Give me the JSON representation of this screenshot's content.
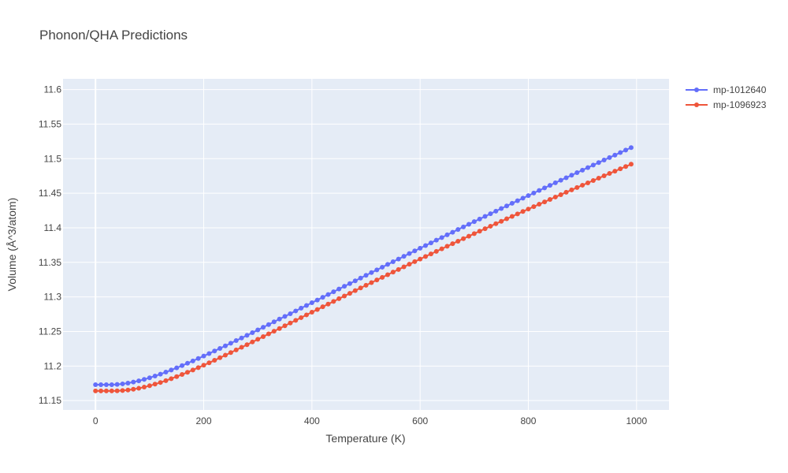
{
  "chart_data": {
    "type": "line",
    "title": "Phonon/QHA Predictions",
    "xlabel": "Temperature (K)",
    "ylabel": "Volume (Å^3/atom)",
    "xlim": [
      -60,
      1060
    ],
    "ylim": [
      11.1365,
      11.6155
    ],
    "xticks": [
      0,
      200,
      400,
      600,
      800,
      1000
    ],
    "xtick_labels": [
      "0",
      "200",
      "400",
      "600",
      "800",
      "1000"
    ],
    "yticks": [
      11.15,
      11.2,
      11.25,
      11.3,
      11.35,
      11.4,
      11.45,
      11.5,
      11.55,
      11.6
    ],
    "ytick_labels": [
      "11.15",
      "11.2",
      "11.25",
      "11.3",
      "11.35",
      "11.4",
      "11.45",
      "11.5",
      "11.55",
      "11.6"
    ],
    "grid": true,
    "legend_position": "top-right",
    "x": [
      0,
      10,
      20,
      30,
      40,
      50,
      60,
      70,
      80,
      90,
      100,
      110,
      120,
      130,
      140,
      150,
      160,
      170,
      180,
      190,
      200,
      210,
      220,
      230,
      240,
      250,
      260,
      270,
      280,
      290,
      300,
      310,
      320,
      330,
      340,
      350,
      360,
      370,
      380,
      390,
      400,
      410,
      420,
      430,
      440,
      450,
      460,
      470,
      480,
      490,
      500,
      510,
      520,
      530,
      540,
      550,
      560,
      570,
      580,
      590,
      600,
      610,
      620,
      630,
      640,
      650,
      660,
      670,
      680,
      690,
      700,
      710,
      720,
      730,
      740,
      750,
      760,
      770,
      780,
      790,
      800,
      810,
      820,
      830,
      840,
      850,
      860,
      870,
      880,
      890,
      900,
      910,
      920,
      930,
      940,
      950,
      960,
      970,
      980,
      990
    ],
    "series": [
      {
        "name": "mp-1012640",
        "color": "#636efa",
        "values": [
          11.173,
          11.173,
          11.173,
          11.173,
          11.1734,
          11.1742,
          11.1753,
          11.1768,
          11.1786,
          11.1807,
          11.183,
          11.1856,
          11.1883,
          11.1912,
          11.1942,
          11.1974,
          11.2006,
          11.204,
          11.2074,
          11.2109,
          11.2145,
          11.2181,
          11.2218,
          11.2255,
          11.2292,
          11.233,
          11.2368,
          11.2406,
          11.2444,
          11.2483,
          11.2522,
          11.2561,
          11.26,
          11.2639,
          11.2679,
          11.2718,
          11.2757,
          11.2797,
          11.2837,
          11.2876,
          11.2916,
          11.2955,
          11.2995,
          11.3035,
          11.3074,
          11.3114,
          11.3154,
          11.3193,
          11.3233,
          11.3273,
          11.3312,
          11.3352,
          11.3391,
          11.343,
          11.347,
          11.3509,
          11.3548,
          11.3587,
          11.3627,
          11.3666,
          11.3704,
          11.3743,
          11.3782,
          11.3821,
          11.3859,
          11.3898,
          11.3936,
          11.3975,
          11.4013,
          11.4051,
          11.4089,
          11.4127,
          11.4165,
          11.4203,
          11.4241,
          11.4279,
          11.4316,
          11.4354,
          11.4391,
          11.4428,
          11.4466,
          11.4503,
          11.454,
          11.4577,
          11.4614,
          11.4651,
          11.4688,
          11.4724,
          11.4761,
          11.4798,
          11.4834,
          11.4871,
          11.4907,
          11.4943,
          11.498,
          11.5016,
          11.5052,
          11.5088,
          11.5124,
          11.516
        ]
      },
      {
        "name": "mp-1096923",
        "color": "#ef553b",
        "values": [
          11.164,
          11.164,
          11.164,
          11.164,
          11.1641,
          11.1646,
          11.1653,
          11.1664,
          11.1678,
          11.1695,
          11.1715,
          11.1738,
          11.1762,
          11.1789,
          11.1817,
          11.1847,
          11.1878,
          11.191,
          11.1943,
          11.1977,
          11.2012,
          11.2047,
          11.2083,
          11.212,
          11.2157,
          11.2195,
          11.2233,
          11.2271,
          11.2309,
          11.2348,
          11.2387,
          11.2426,
          11.2465,
          11.2504,
          11.2543,
          11.2582,
          11.2622,
          11.2661,
          11.27,
          11.274,
          11.2779,
          11.2818,
          11.2857,
          11.2896,
          11.2935,
          11.2974,
          11.3013,
          11.3052,
          11.3091,
          11.313,
          11.3168,
          11.3207,
          11.3245,
          11.3283,
          11.3321,
          11.3359,
          11.3397,
          11.3435,
          11.3473,
          11.351,
          11.3548,
          11.3585,
          11.3622,
          11.3659,
          11.3696,
          11.3733,
          11.377,
          11.3806,
          11.3843,
          11.3879,
          11.3915,
          11.3951,
          11.3987,
          11.4023,
          11.4059,
          11.4094,
          11.413,
          11.4165,
          11.42,
          11.4236,
          11.4271,
          11.4306,
          11.4341,
          11.4375,
          11.441,
          11.4445,
          11.4479,
          11.4514,
          11.4548,
          11.4582,
          11.4616,
          11.465,
          11.4684,
          11.4718,
          11.4752,
          11.4786,
          11.4819,
          11.4853,
          11.4886,
          11.492
        ]
      }
    ]
  }
}
